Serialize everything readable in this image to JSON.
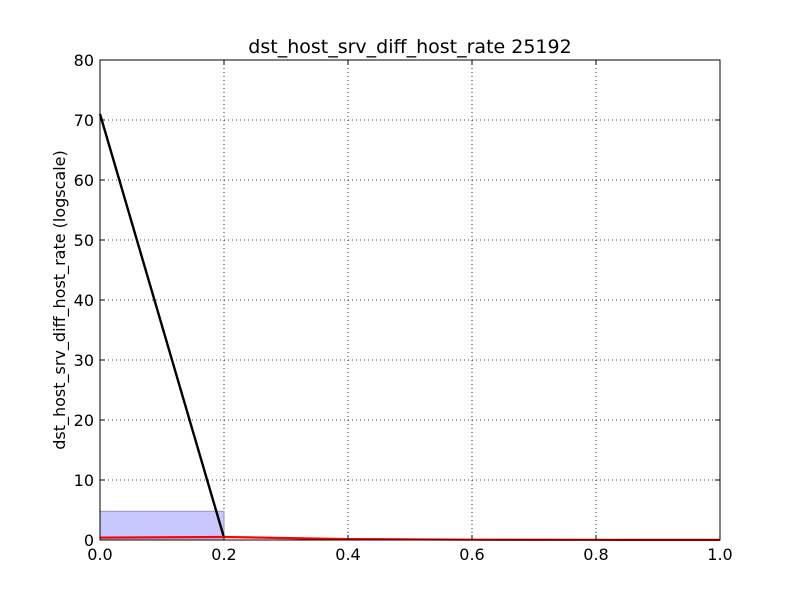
{
  "chart_data": {
    "type": "line",
    "title": "dst_host_srv_diff_host_rate 25192",
    "xlabel": "",
    "ylabel": "dst_host_srv_diff_host_rate (logscale)",
    "xlim": [
      0.0,
      1.0
    ],
    "ylim": [
      0,
      80
    ],
    "x_ticks": [
      "0.0",
      "0.2",
      "0.4",
      "0.6",
      "0.8",
      "1.0"
    ],
    "y_ticks": [
      "0",
      "10",
      "20",
      "30",
      "40",
      "50",
      "60",
      "70",
      "80"
    ],
    "grid": true,
    "legend": "none",
    "band": {
      "x": [
        0.0,
        0.2
      ],
      "y": [
        0,
        4.8
      ],
      "color": "#c8c8ff"
    },
    "series": [
      {
        "color": "#000000",
        "x": [
          0.0,
          0.2
        ],
        "y": [
          71,
          0.4
        ]
      },
      {
        "color": "#ff0000",
        "x": [
          0.0,
          0.2,
          0.4,
          0.6,
          0.8,
          1.0
        ],
        "y": [
          0.4,
          0.5,
          0.15,
          0.05,
          0.03,
          0.02
        ]
      }
    ]
  }
}
